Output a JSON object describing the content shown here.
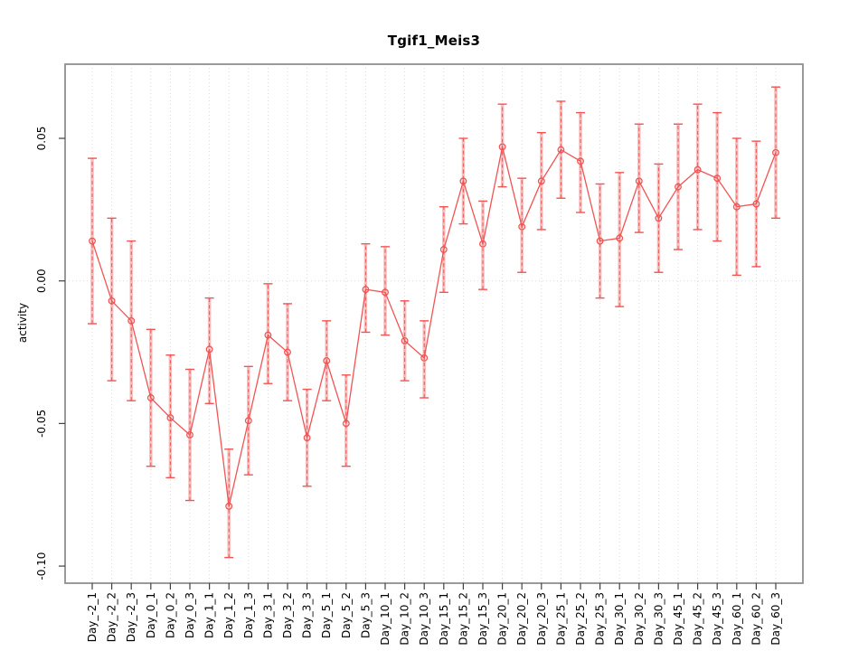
{
  "figure": {
    "title": "Tgif1_Meis3",
    "ylabel": "activity"
  },
  "colors": {
    "series": "#f15454",
    "error_band": "rgba(241,100,100,0.42)",
    "grid": "#d9d9d9",
    "box": "#8f8f8f",
    "tick": "#404040",
    "text": "#000000"
  },
  "chart_data": {
    "type": "line",
    "title": "Tgif1_Meis3",
    "xlabel": "",
    "ylabel": "activity",
    "ylim": [
      -0.106,
      0.076
    ],
    "yticks": [
      {
        "value": 0.05,
        "label": "0.05"
      },
      {
        "value": 0.0,
        "label": "0.00"
      },
      {
        "value": -0.05,
        "label": "-0.05"
      },
      {
        "value": -0.1,
        "label": "-0.10"
      }
    ],
    "grid": {
      "vertical_per_category": true,
      "horizontal_at_zero": true
    },
    "legend": null,
    "x_labels_rotated_90": true,
    "marker": "open-circle",
    "error_bars": true,
    "categories": [
      "Day_-2_1",
      "Day_-2_2",
      "Day_-2_3",
      "Day_0_1",
      "Day_0_2",
      "Day_0_3",
      "Day_1_1",
      "Day_1_2",
      "Day_1_3",
      "Day_3_1",
      "Day_3_2",
      "Day_3_3",
      "Day_5_1",
      "Day_5_2",
      "Day_5_3",
      "Day_10_1",
      "Day_10_2",
      "Day_10_3",
      "Day_15_1",
      "Day_15_2",
      "Day_15_3",
      "Day_20_1",
      "Day_20_2",
      "Day_20_3",
      "Day_25_1",
      "Day_25_2",
      "Day_25_3",
      "Day_30_1",
      "Day_30_2",
      "Day_30_3",
      "Day_45_1",
      "Day_45_2",
      "Day_45_3",
      "Day_60_1",
      "Day_60_2",
      "Day_60_3"
    ],
    "series": [
      {
        "name": "activity",
        "color": "#f15454",
        "values": [
          0.014,
          -0.007,
          -0.014,
          -0.041,
          -0.048,
          -0.054,
          -0.024,
          -0.079,
          -0.049,
          -0.019,
          -0.025,
          -0.055,
          -0.028,
          -0.05,
          -0.003,
          -0.004,
          -0.021,
          -0.027,
          0.011,
          0.035,
          0.013,
          0.047,
          0.019,
          0.035,
          0.046,
          0.042,
          0.014,
          0.015,
          0.035,
          0.022,
          0.033,
          0.039,
          0.036,
          0.026,
          0.027,
          0.045
        ],
        "err_low": [
          -0.015,
          -0.035,
          -0.042,
          -0.065,
          -0.069,
          -0.077,
          -0.043,
          -0.097,
          -0.068,
          -0.036,
          -0.042,
          -0.072,
          -0.042,
          -0.065,
          -0.018,
          -0.019,
          -0.035,
          -0.041,
          -0.004,
          0.02,
          -0.003,
          0.033,
          0.003,
          0.018,
          0.029,
          0.024,
          -0.006,
          -0.009,
          0.017,
          0.003,
          0.011,
          0.018,
          0.014,
          0.002,
          0.005,
          0.022
        ],
        "err_high": [
          0.043,
          0.022,
          0.014,
          -0.017,
          -0.026,
          -0.031,
          -0.006,
          -0.059,
          -0.03,
          -0.001,
          -0.008,
          -0.038,
          -0.014,
          -0.033,
          0.013,
          0.012,
          -0.007,
          -0.014,
          0.026,
          0.05,
          0.028,
          0.062,
          0.036,
          0.052,
          0.063,
          0.059,
          0.034,
          0.038,
          0.055,
          0.041,
          0.055,
          0.062,
          0.059,
          0.05,
          0.049,
          0.068
        ]
      }
    ]
  }
}
